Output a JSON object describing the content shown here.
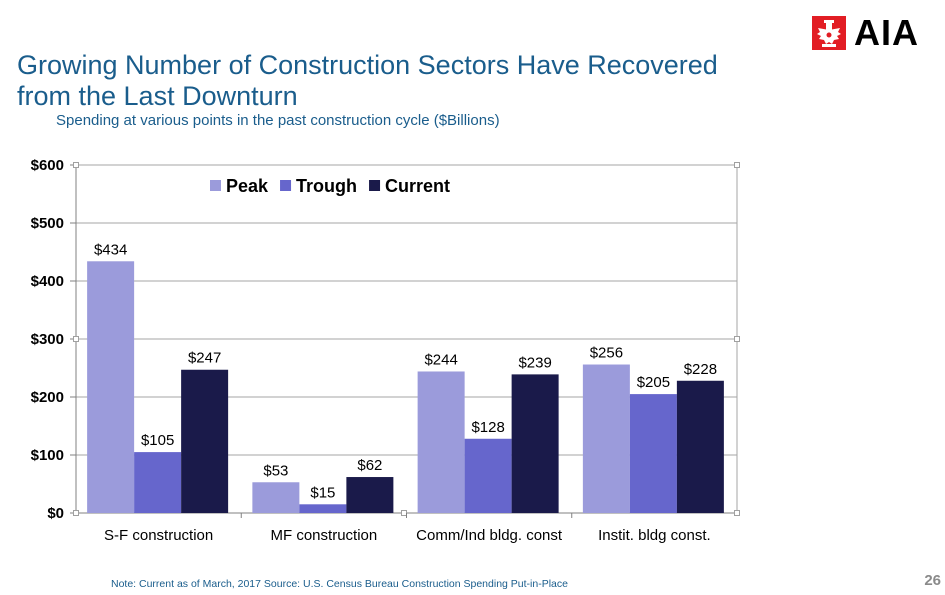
{
  "header": {
    "title": "Growing Number of Construction Sectors Have Recovered from the Last Downturn",
    "title_line1": "Growing Number of Construction Sectors Have Recovered",
    "title_line2": "from the Last Downturn",
    "subtitle": "Spending at various points in the past construction cycle ($Billions)"
  },
  "logo": {
    "text": "AIA",
    "icon": "aia-eagle-column-icon",
    "color": "#e21d24"
  },
  "footer": {
    "note": "Note: Current as of March, 2017   Source: U.S. Census Bureau Construction Spending Put-in-Place",
    "page_number": "26"
  },
  "chart_data": {
    "type": "bar",
    "title": "",
    "xlabel": "",
    "ylabel": "",
    "ylim": [
      0,
      600
    ],
    "yticks": [
      0,
      100,
      200,
      300,
      400,
      500,
      600
    ],
    "ytick_labels": [
      "$0",
      "$100",
      "$200",
      "$300",
      "$400",
      "$500",
      "$600"
    ],
    "grid": true,
    "legend_position": "top-left",
    "categories": [
      "S-F construction",
      "MF construction",
      "Comm/Ind bldg. const",
      "Instit. bldg const."
    ],
    "series": [
      {
        "name": "Peak",
        "color": "#9b9bdb",
        "values": [
          434,
          53,
          244,
          256
        ],
        "labels": [
          "$434",
          "$53",
          "$244",
          "$256"
        ]
      },
      {
        "name": "Trough",
        "color": "#6666cc",
        "values": [
          105,
          15,
          128,
          205
        ],
        "labels": [
          "$105",
          "$15",
          "$128",
          "$205"
        ]
      },
      {
        "name": "Current",
        "color": "#1a1a4a",
        "values": [
          247,
          62,
          239,
          228
        ],
        "labels": [
          "$247",
          "$62",
          "$239",
          "$228"
        ]
      }
    ]
  }
}
